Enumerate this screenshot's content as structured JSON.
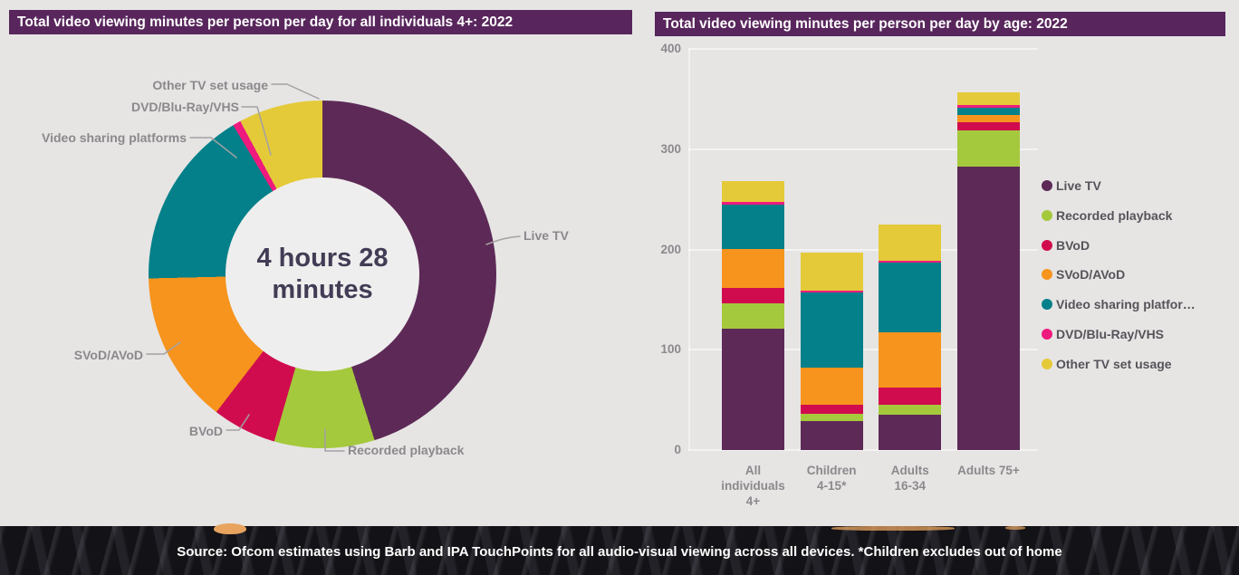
{
  "page": {
    "background": "#e6e5e4",
    "source_text": "Source: Ofcom estimates using Barb and IPA TouchPoints for all audio-visual viewing across all devices. *Children excludes out of home"
  },
  "left_panel": {
    "title": "Total video viewing minutes per person per day for all individuals 4+: 2022"
  },
  "right_panel": {
    "title": "Total video viewing minutes per person per day by age: 2022"
  },
  "colors": {
    "title_bar": "#58265c",
    "background": "#e6e5e4",
    "label_gray": "#8b898c",
    "legend_gray": "#565359",
    "center_text": "#423c55"
  },
  "chart_data": [
    {
      "type": "pie",
      "subtype": "donut",
      "title": "Total video viewing minutes per person per day for all individuals 4+: 2022",
      "center_line1": "4 hours 28",
      "center_line2": "minutes",
      "total_minutes": 268,
      "start_angle_deg": 0,
      "direction": "clockwise",
      "segments": [
        {
          "name": "Live TV",
          "value": 121,
          "color": "#5d2a57"
        },
        {
          "name": "Recorded playback",
          "value": 25,
          "color": "#a5c93c"
        },
        {
          "name": "BVoD",
          "value": 16,
          "color": "#d00c4e"
        },
        {
          "name": "SVoD/AVoD",
          "value": 38,
          "color": "#f6941e"
        },
        {
          "name": "Video sharing platforms",
          "value": 45,
          "color": "#038089"
        },
        {
          "name": "DVD/Blu-Ray/VHS",
          "value": 2,
          "color": "#ef1a7e"
        },
        {
          "name": "Other TV set usage",
          "value": 21,
          "color": "#e4ca39"
        }
      ]
    },
    {
      "type": "bar",
      "subtype": "stacked",
      "title": "Total video viewing minutes per person per day by age: 2022",
      "ylim": [
        0,
        400
      ],
      "yticks": [
        400,
        300,
        200,
        100,
        0
      ],
      "grid": true,
      "legend_position": "right",
      "categories": [
        {
          "label": "All individuals 4+",
          "lines": [
            "All",
            "individuals",
            "4+"
          ]
        },
        {
          "label": "Children 4-15*",
          "lines": [
            "Children",
            "4-15*"
          ]
        },
        {
          "label": "Adults 16-34",
          "lines": [
            "Adults",
            "16-34"
          ]
        },
        {
          "label": "Adults 75+",
          "lines": [
            "Adults 75+"
          ]
        }
      ],
      "series": [
        {
          "name": "Live TV",
          "color": "#5d2a57",
          "values": [
            121,
            29,
            35,
            283
          ]
        },
        {
          "name": "Recorded playback",
          "color": "#a5c93c",
          "values": [
            25,
            7,
            10,
            36
          ]
        },
        {
          "name": "BVoD",
          "color": "#d00c4e",
          "values": [
            16,
            9,
            17,
            8
          ]
        },
        {
          "name": "SVoD/AVoD",
          "color": "#f6941e",
          "values": [
            38,
            37,
            55,
            7
          ]
        },
        {
          "name": "Video sharing platforms",
          "legend_label": "Video sharing platfor…",
          "color": "#038089",
          "values": [
            45,
            75,
            70,
            7
          ]
        },
        {
          "name": "DVD/Blu-Ray/VHS",
          "color": "#ef1a7e",
          "values": [
            2,
            2,
            2,
            3
          ]
        },
        {
          "name": "Other TV set usage",
          "color": "#e4ca39",
          "values": [
            21,
            38,
            36,
            13
          ]
        }
      ],
      "totals": [
        268,
        197,
        225,
        357
      ]
    }
  ]
}
